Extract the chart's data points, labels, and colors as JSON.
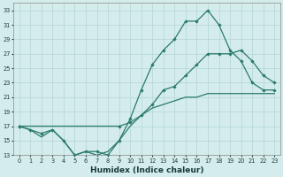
{
  "xlabel": "Humidex (Indice chaleur)",
  "bg_color": "#d4ecec",
  "grid_color": "#b8d8d8",
  "line_color": "#2a7a6a",
  "xlim": [
    -0.5,
    23.5
  ],
  "ylim": [
    13,
    34
  ],
  "xticks": [
    0,
    1,
    2,
    3,
    4,
    5,
    6,
    7,
    8,
    9,
    10,
    11,
    12,
    13,
    14,
    15,
    16,
    17,
    18,
    19,
    20,
    21,
    22,
    23
  ],
  "yticks": [
    13,
    15,
    17,
    19,
    21,
    23,
    25,
    27,
    29,
    31,
    33
  ],
  "line1_x": [
    0,
    1,
    2,
    3,
    4,
    5,
    6,
    7,
    8,
    9,
    10,
    11,
    12,
    13,
    14,
    15,
    16,
    17,
    18,
    19,
    20,
    21,
    22,
    23
  ],
  "line1_y": [
    17,
    16.5,
    16,
    16.5,
    15,
    13,
    13.5,
    13.5,
    13,
    15,
    18,
    22,
    25.5,
    27.5,
    29,
    31.5,
    31.5,
    33,
    31,
    27.5,
    26,
    23,
    22,
    22
  ],
  "line2_x": [
    0,
    9,
    10,
    11,
    12,
    13,
    14,
    15,
    16,
    17,
    18,
    19,
    20,
    21,
    22,
    23
  ],
  "line2_y": [
    17,
    17,
    17.5,
    18.5,
    20,
    22,
    22.5,
    24,
    25.5,
    27,
    27,
    27,
    27.5,
    26,
    24,
    23
  ],
  "line3_x": [
    0,
    1,
    2,
    3,
    4,
    5,
    6,
    7,
    8,
    9,
    10,
    11,
    12,
    13,
    14,
    15,
    16,
    17,
    18,
    19,
    20,
    21,
    22,
    23
  ],
  "line3_y": [
    17,
    16.5,
    15.5,
    16.5,
    15,
    13,
    13.5,
    13,
    13.5,
    15,
    17,
    18.5,
    19.5,
    20,
    20.5,
    21,
    21,
    21.5,
    21.5,
    21.5,
    21.5,
    21.5,
    21.5,
    21.5
  ]
}
